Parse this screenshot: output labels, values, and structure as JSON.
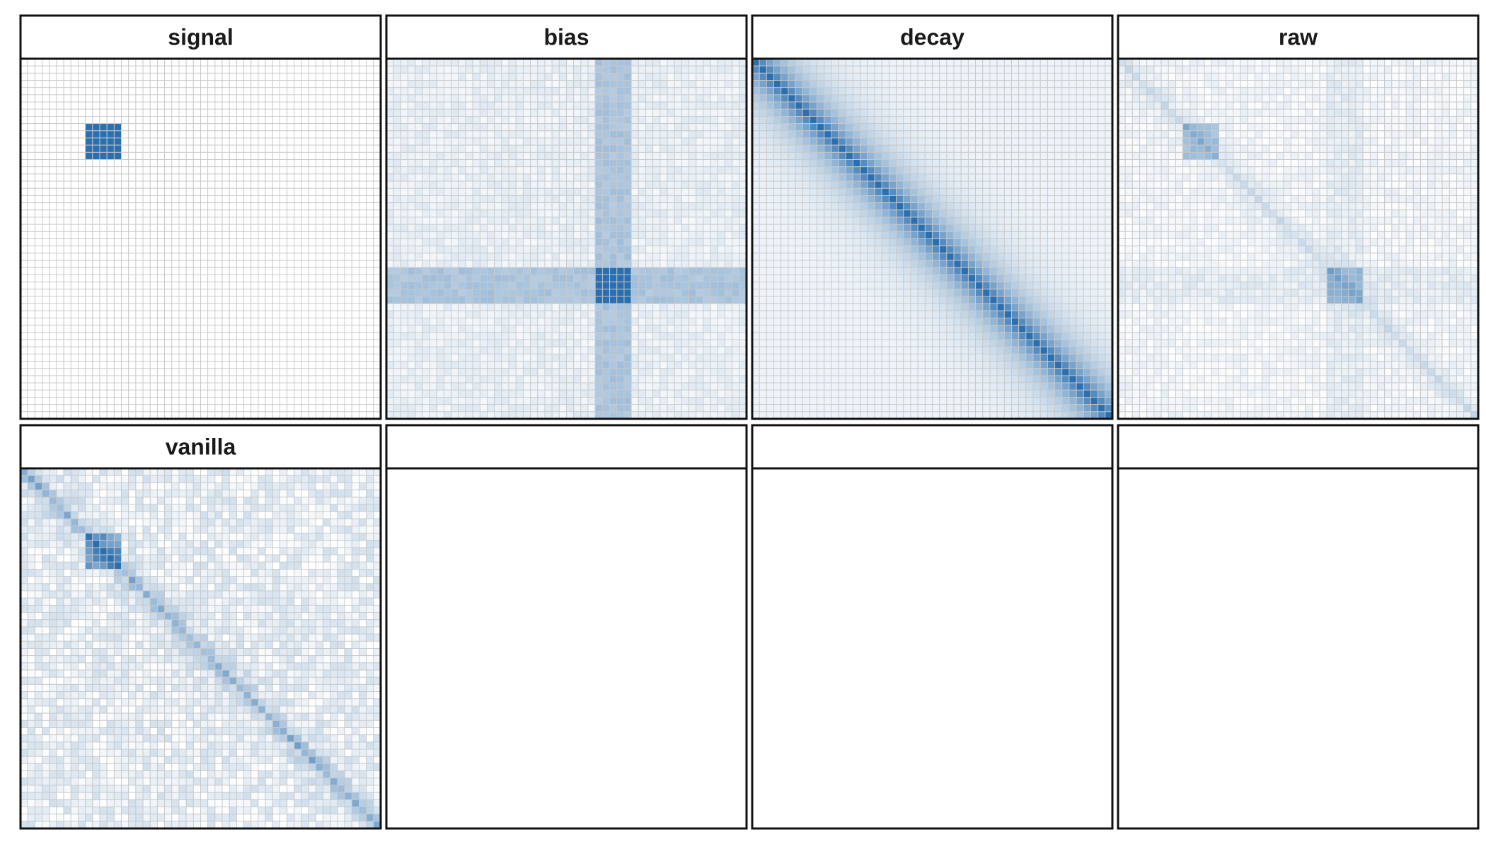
{
  "chart_data": {
    "type": "heatmap",
    "layout": {
      "rows": 2,
      "cols": 4
    },
    "grid_size": 50,
    "colors": {
      "low": "#ffffff",
      "high": "#2a6fb0",
      "gridline": "#c8c8c8",
      "border": "#111111"
    },
    "panels": [
      {
        "title": "signal",
        "components": [
          {
            "kind": "block",
            "rows": [
              9,
              14
            ],
            "cols": [
              9,
              14
            ],
            "value": 1.0
          }
        ],
        "noise": 0
      },
      {
        "title": "bias",
        "components": [
          {
            "kind": "base",
            "value": 0.1
          },
          {
            "kind": "band",
            "axis": "rows",
            "range": [
              29,
              34
            ],
            "value": 0.3
          },
          {
            "kind": "band",
            "axis": "cols",
            "range": [
              29,
              34
            ],
            "value": 0.3
          },
          {
            "kind": "block",
            "rows": [
              29,
              34
            ],
            "cols": [
              29,
              34
            ],
            "value": 0.8
          }
        ],
        "noise": 0.05
      },
      {
        "title": "decay",
        "components": [
          {
            "kind": "base",
            "value": 0.08
          },
          {
            "kind": "diagonal_decay",
            "peak": 0.92,
            "scale": 4
          }
        ],
        "noise": 0
      },
      {
        "title": "raw",
        "components": [
          {
            "kind": "base",
            "value": 0.06
          },
          {
            "kind": "diagonal_decay",
            "peak": 0.18,
            "scale": 1.5
          },
          {
            "kind": "band",
            "axis": "rows",
            "range": [
              29,
              34
            ],
            "value": 0.06
          },
          {
            "kind": "band",
            "axis": "cols",
            "range": [
              29,
              34
            ],
            "value": 0.06
          },
          {
            "kind": "block",
            "rows": [
              9,
              14
            ],
            "cols": [
              9,
              14
            ],
            "value": 0.35
          },
          {
            "kind": "block",
            "rows": [
              29,
              34
            ],
            "cols": [
              29,
              34
            ],
            "value": 0.3
          }
        ],
        "noise": 0.05
      },
      {
        "title": "vanilla",
        "components": [
          {
            "kind": "base",
            "value": 0.1
          },
          {
            "kind": "diagonal_decay",
            "peak": 0.45,
            "scale": 1.5
          },
          {
            "kind": "block",
            "rows": [
              9,
              14
            ],
            "cols": [
              9,
              14
            ],
            "value": 0.5
          }
        ],
        "noise": 0.12
      },
      {
        "title": "",
        "components": [],
        "noise": 0,
        "empty": true
      },
      {
        "title": "",
        "components": [],
        "noise": 0,
        "empty": true
      },
      {
        "title": "",
        "components": [],
        "noise": 0,
        "empty": true
      }
    ]
  }
}
